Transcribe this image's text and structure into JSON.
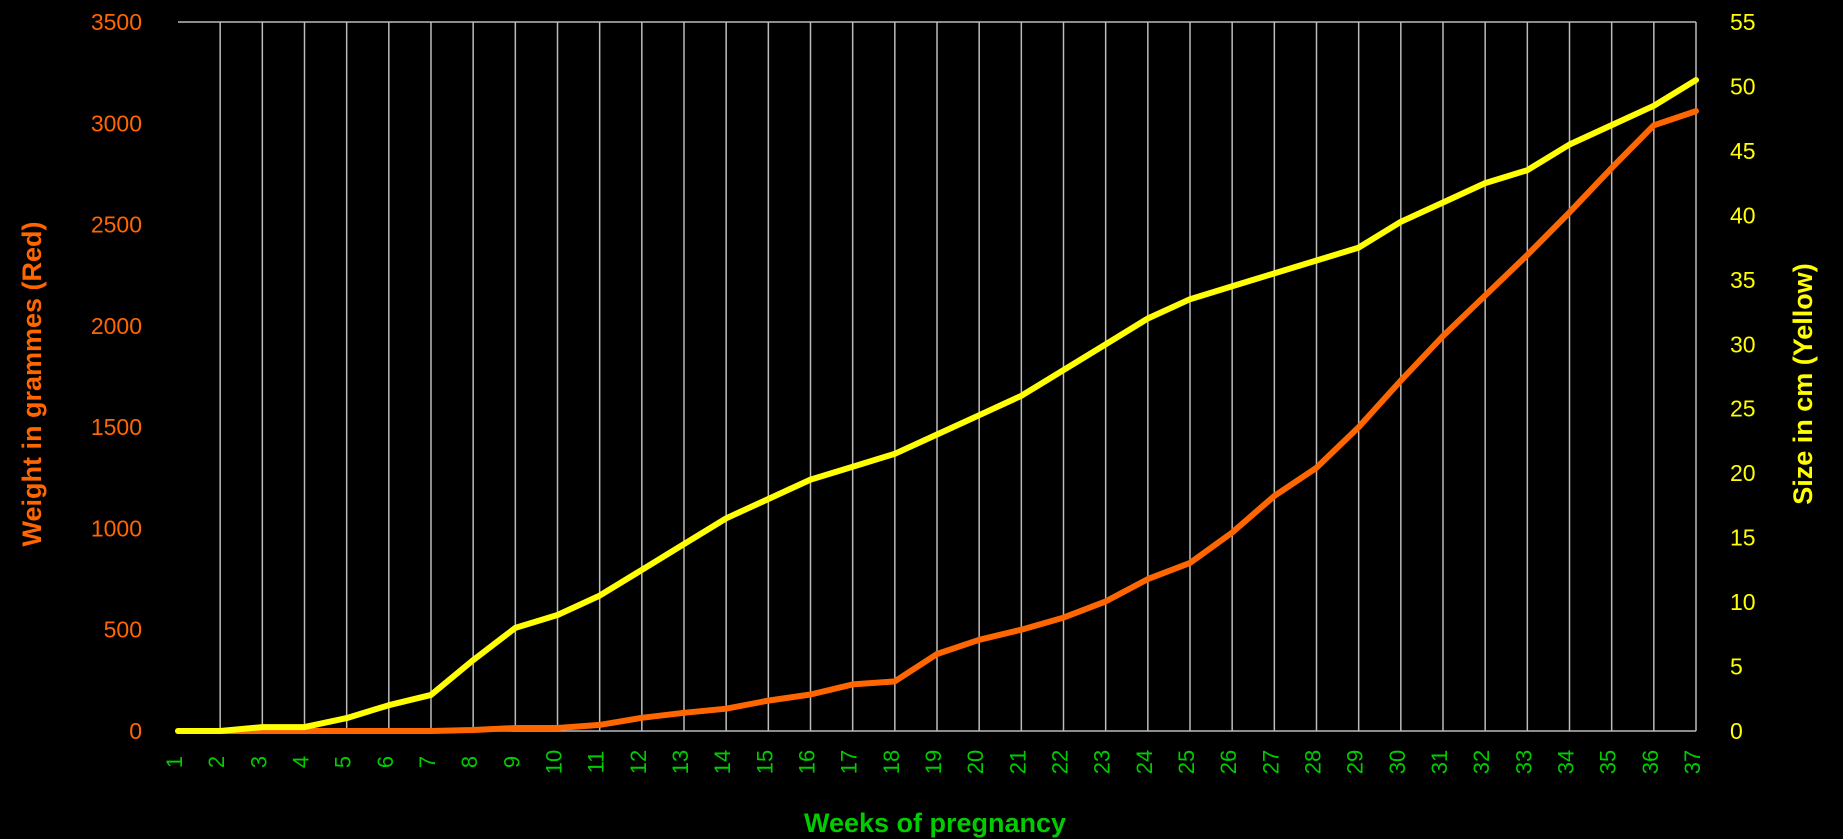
{
  "chart_data": {
    "type": "line",
    "xlabel": "Weeks of pregnancy",
    "ylabel_left": "Weight in grammes (Red)",
    "ylabel_right": "Size in cm (Yellow)",
    "ylim_left": [
      0,
      3500
    ],
    "ylim_right": [
      0,
      55
    ],
    "yticks_left": [
      0,
      500,
      1000,
      1500,
      2000,
      2500,
      3000,
      3500
    ],
    "yticks_right": [
      0,
      5,
      10,
      15,
      20,
      25,
      30,
      35,
      40,
      45,
      50,
      55
    ],
    "x": [
      1,
      2,
      3,
      4,
      5,
      6,
      7,
      8,
      9,
      10,
      11,
      12,
      13,
      14,
      15,
      16,
      17,
      18,
      19,
      20,
      21,
      22,
      23,
      24,
      25,
      26,
      27,
      28,
      29,
      30,
      31,
      32,
      33,
      34,
      35,
      36,
      37
    ],
    "grid": "vertical",
    "series": [
      {
        "axis": "left",
        "color": "#FF6600",
        "values": [
          0,
          0,
          0,
          0,
          0,
          0,
          0,
          5,
          15,
          15,
          30,
          65,
          90,
          110,
          150,
          180,
          230,
          245,
          380,
          450,
          500,
          560,
          640,
          750,
          830,
          980,
          1160,
          1300,
          1500,
          1730,
          1950,
          2150,
          2350,
          2560,
          2780,
          2990,
          3060
        ]
      },
      {
        "axis": "right",
        "color": "#FFFF00",
        "values": [
          0,
          0,
          0.3,
          0.3,
          1,
          2,
          2.8,
          5.5,
          8,
          9,
          10.5,
          12.5,
          14.5,
          16.5,
          18,
          19.5,
          20.5,
          21.5,
          23,
          24.5,
          26,
          28,
          30,
          32,
          33.5,
          34.5,
          35.5,
          36.5,
          37.5,
          39.5,
          41,
          42.5,
          43.5,
          45.5,
          47,
          48.5,
          50.5
        ]
      }
    ]
  },
  "colors": {
    "background": "#000000",
    "grid": "#BBBBBB",
    "left_axis_text": "#FF6600",
    "right_axis_text": "#FFFF00",
    "x_axis_text": "#00CC00"
  }
}
